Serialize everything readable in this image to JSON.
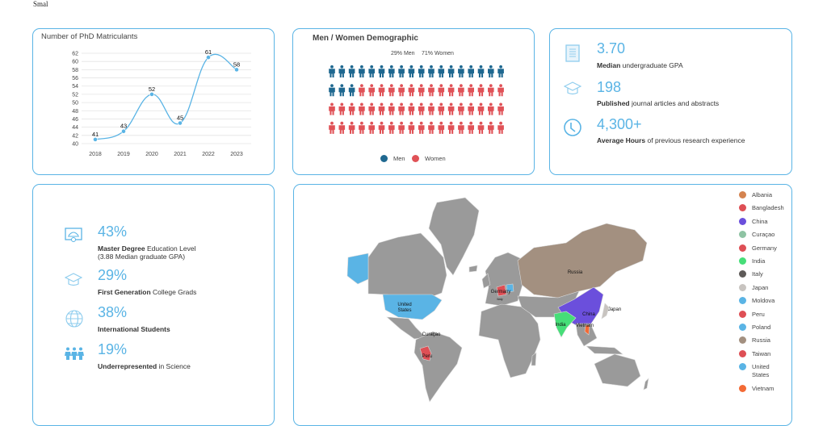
{
  "top_text": "Smal",
  "chart_data": {
    "type": "line",
    "title": "Number of PhD Matriculants",
    "categories": [
      "2018",
      "2019",
      "2020",
      "2021",
      "2022",
      "2023"
    ],
    "values": [
      41,
      43,
      52,
      45,
      61,
      58
    ],
    "yticks": [
      40,
      42,
      44,
      46,
      48,
      50,
      52,
      54,
      56,
      58,
      60,
      62
    ],
    "ylim": [
      40,
      62
    ],
    "xlabel": "",
    "ylabel": "",
    "color": "#5ab4e5"
  },
  "demographic": {
    "title": "Men / Women Demographic",
    "men_label": "29% Men",
    "women_label": "71% Women",
    "men_percent": 29,
    "total_icons": 72,
    "men_icons": 21,
    "legend": [
      {
        "label": "Men",
        "color": "#1f6890"
      },
      {
        "label": "Women",
        "color": "#e05257"
      }
    ]
  },
  "stats_top": [
    {
      "icon": "document-icon",
      "value": "3.70",
      "bold": "Median",
      "text": " undergraduate GPA"
    },
    {
      "icon": "graduation-cap-icon",
      "value": "198",
      "bold": "Published",
      "text": " journal articles and abstracts"
    },
    {
      "icon": "clock-icon",
      "value": "4,300+",
      "bold": "Average Hours",
      "text": " of previous research experience"
    }
  ],
  "stats_bottom": [
    {
      "icon": "diploma-icon",
      "value": "43%",
      "bold": "Master Degree",
      "text": " Education Level",
      "line2": "(3.88 Median graduate GPA)"
    },
    {
      "icon": "graduation-cap-icon",
      "value": "29%",
      "bold": "First Generation",
      "text": " College Grads"
    },
    {
      "icon": "globe-icon",
      "value": "38%",
      "bold": "International Students",
      "text": ""
    },
    {
      "icon": "people-icon",
      "value": "19%",
      "bold": "Underrepresented",
      "text": " in Science"
    }
  ],
  "map": {
    "labels": {
      "russia": "Russia",
      "us1": "United",
      "us2": "States",
      "germany": "Germany",
      "italy": "Italy",
      "china": "China",
      "japan": "Japan",
      "india": "India",
      "vietnam": "Vietnam",
      "curacao": "Curaçao",
      "peru": "Peru"
    },
    "legend": [
      {
        "label": "Albania",
        "color": "#d4834f"
      },
      {
        "label": "Bangladesh",
        "color": "#de4f55"
      },
      {
        "label": "China",
        "color": "#6b4fdc"
      },
      {
        "label": "Curaçao",
        "color": "#8ec3a3"
      },
      {
        "label": "Germany",
        "color": "#de4f55"
      },
      {
        "label": "India",
        "color": "#46de78"
      },
      {
        "label": "Italy",
        "color": "#5e5a58"
      },
      {
        "label": "Japan",
        "color": "#c8c4c0"
      },
      {
        "label": "Moldova",
        "color": "#5ab4e5"
      },
      {
        "label": "Peru",
        "color": "#de4f55"
      },
      {
        "label": "Poland",
        "color": "#5ab4e5"
      },
      {
        "label": "Russia",
        "color": "#a39080"
      },
      {
        "label": "Taiwan",
        "color": "#de4f55"
      },
      {
        "label": "United States",
        "color": "#5ab4e5"
      },
      {
        "label": "Vietnam",
        "color": "#f36a35"
      }
    ]
  }
}
